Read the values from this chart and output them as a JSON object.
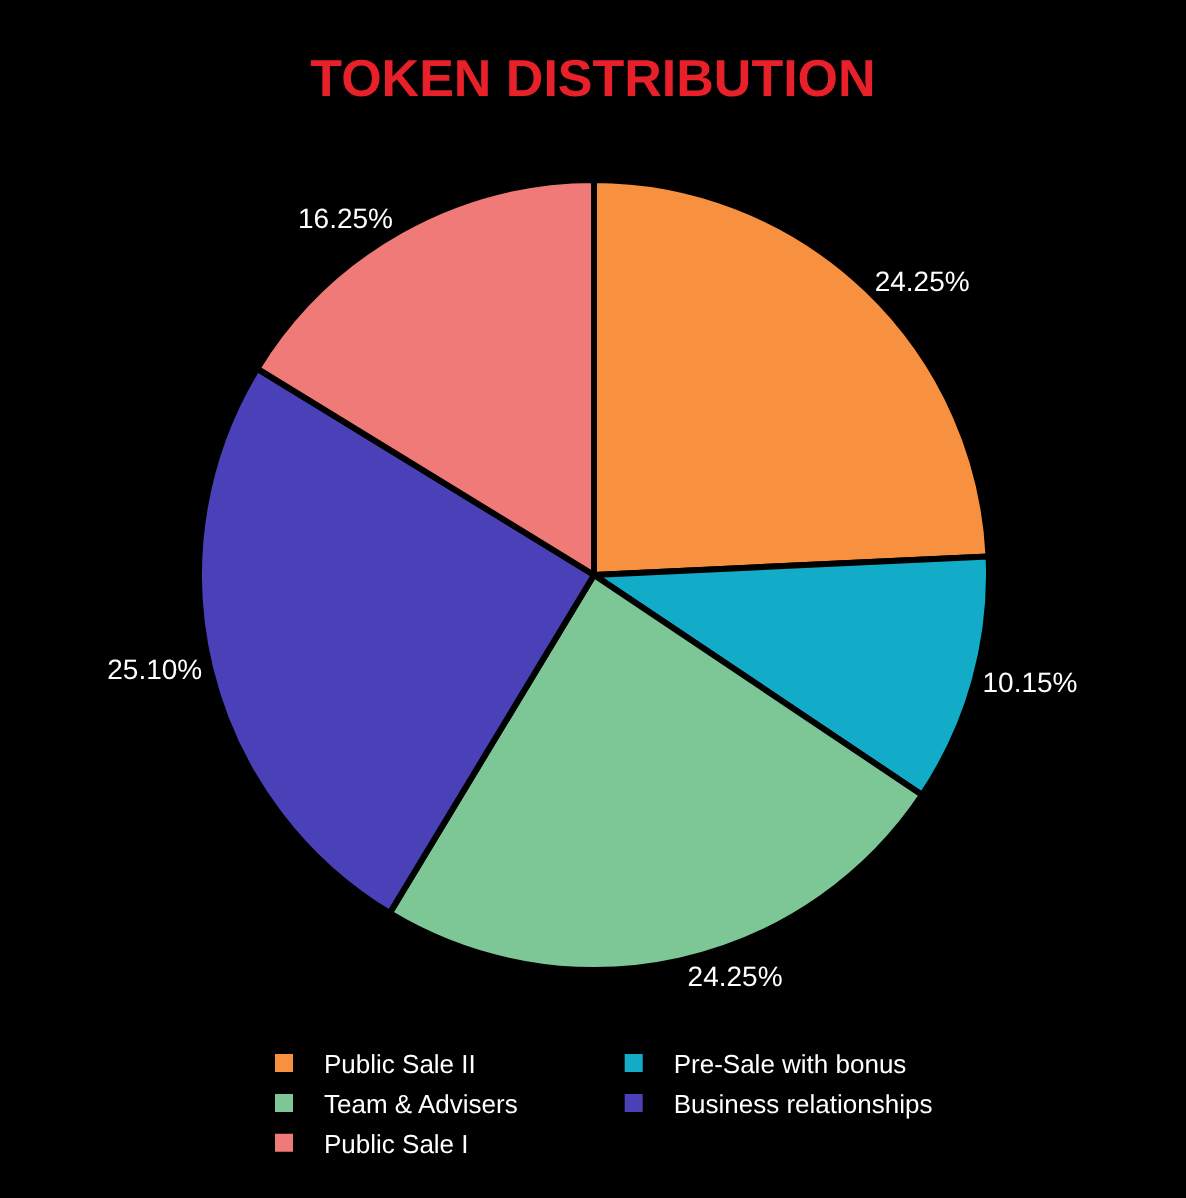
{
  "chart_data": {
    "type": "pie",
    "title": "TOKEN DISTRIBUTION",
    "categories": [
      "Public Sale II",
      "Pre-Sale with bonus",
      "Team & Advisers",
      "Business relationships",
      "Public Sale I"
    ],
    "values": [
      24.25,
      10.15,
      24.25,
      25.1,
      16.25
    ],
    "value_labels": [
      "24.25%",
      "10.15%",
      "24.25%",
      "25.10%",
      "16.25%"
    ],
    "colors": [
      "#f7913f",
      "#12acc9",
      "#7dc797",
      "#4a40b7",
      "#f07a78"
    ],
    "legend": "bottom"
  }
}
